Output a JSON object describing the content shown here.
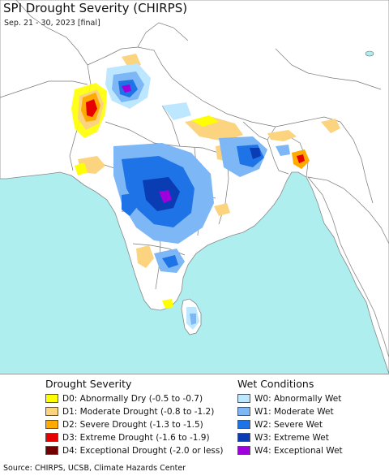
{
  "header": {
    "title": "SPI Drought Severity (CHIRPS)",
    "subtitle": "Sep. 21 - 30, 2023 [final]"
  },
  "map": {
    "region": "South Asia",
    "colors": {
      "land": "#ffffff",
      "ocean": "#aeeeee",
      "border": "#777777",
      "lake": "#aeeeee"
    }
  },
  "legend": {
    "drought": {
      "heading": "Drought Severity",
      "items": [
        {
          "code": "D0",
          "label": "D0: Abnormally Dry (-0.5 to -0.7)",
          "color": "#ffff00"
        },
        {
          "code": "D1",
          "label": "D1: Moderate Drought (-0.8 to -1.2)",
          "color": "#fcd37f"
        },
        {
          "code": "D2",
          "label": "D2: Severe Drought (-1.3 to -1.5)",
          "color": "#ffaa00"
        },
        {
          "code": "D3",
          "label": "D3: Extreme Drought (-1.6 to -1.9)",
          "color": "#e60000"
        },
        {
          "code": "D4",
          "label": "D4: Exceptional Drought (-2.0 or less)",
          "color": "#730000"
        }
      ]
    },
    "wet": {
      "heading": "Wet Conditions",
      "items": [
        {
          "code": "W0",
          "label": "W0: Abnormally Wet",
          "color": "#bde7ff"
        },
        {
          "code": "W1",
          "label": "W1: Moderate Wet",
          "color": "#7db7f5"
        },
        {
          "code": "W2",
          "label": "W2: Severe Wet",
          "color": "#1e73e6"
        },
        {
          "code": "W3",
          "label": "W3: Extreme Wet",
          "color": "#0a3cb4"
        },
        {
          "code": "W4",
          "label": "W4: Exceptional Wet",
          "color": "#a000dc"
        }
      ]
    }
  },
  "footer": {
    "source": "Source: CHIRPS, UCSB, Climate Hazards Center"
  }
}
